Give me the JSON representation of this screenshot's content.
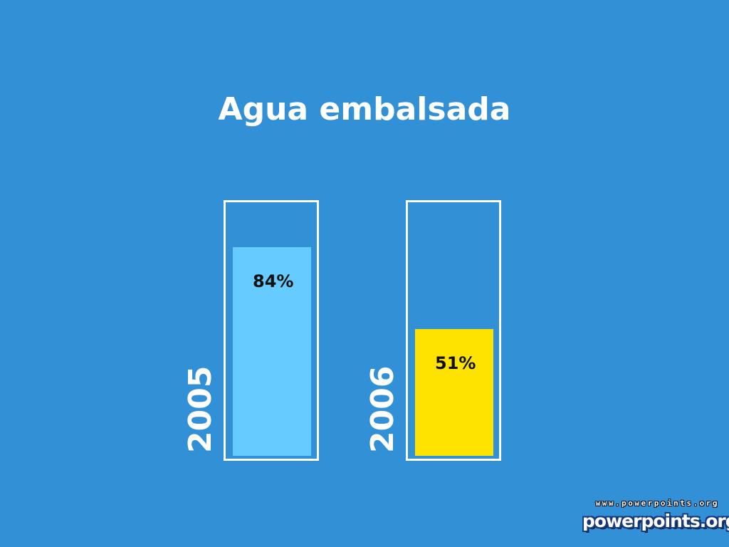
{
  "chart_data": {
    "type": "bar",
    "title": "Agua embalsada",
    "categories": [
      "2005",
      "2006"
    ],
    "values": [
      84,
      51
    ],
    "value_labels": [
      "84%",
      "51%"
    ],
    "unit": "%",
    "ylim": [
      0,
      100
    ],
    "colors": [
      "#66ccff",
      "#ffe300"
    ]
  },
  "logo": {
    "url_text": "www.powerpoints.org",
    "brand": "powerpoints.org"
  }
}
